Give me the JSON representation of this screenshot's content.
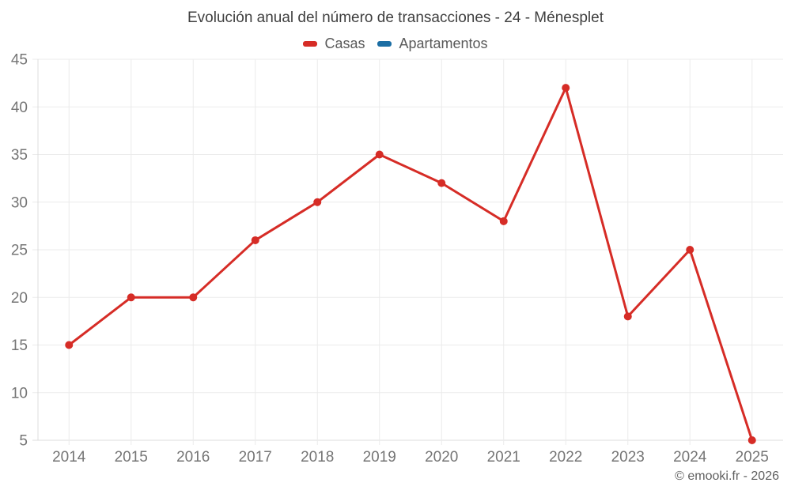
{
  "chart_data": {
    "type": "line",
    "title": "Evolución anual del número de transacciones - 24 - Ménesplet",
    "categories": [
      "2014",
      "2015",
      "2016",
      "2017",
      "2018",
      "2019",
      "2020",
      "2021",
      "2022",
      "2023",
      "2024",
      "2025"
    ],
    "series": [
      {
        "name": "Casas",
        "color": "#d62c26",
        "values": [
          15,
          20,
          20,
          26,
          30,
          35,
          32,
          28,
          42,
          18,
          25,
          5
        ]
      },
      {
        "name": "Apartamentos",
        "color": "#1c6ea4",
        "values": []
      }
    ],
    "xlabel": "",
    "ylabel": "",
    "ylim": [
      5,
      45
    ],
    "yticks": [
      5,
      10,
      15,
      20,
      25,
      30,
      35,
      40,
      45
    ],
    "grid": true,
    "legend_position": "top"
  },
  "watermark": "© emooki.fr - 2026",
  "theme": {
    "background": "#ffffff",
    "grid_color": "#ebebeb",
    "axis_color": "#dcdcdc",
    "tick_label_color": "#757575",
    "title_color": "#3f3f3f",
    "legend_text_color": "#595959",
    "watermark_color": "#5f5f5f"
  }
}
